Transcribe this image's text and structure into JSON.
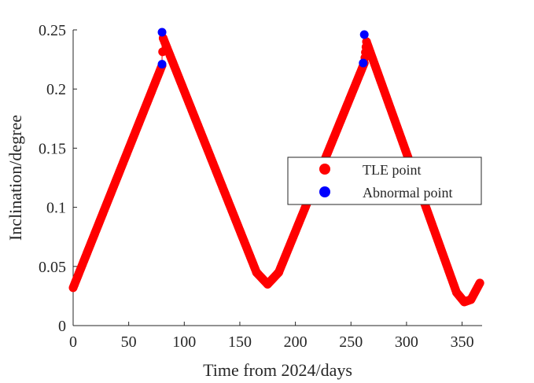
{
  "chart_data": {
    "type": "scatter",
    "xlabel": "Time from 2024/days",
    "ylabel": "Inclination/degree",
    "xlim": [
      0,
      368
    ],
    "ylim": [
      0,
      0.25
    ],
    "xticks": [
      0,
      50,
      100,
      150,
      200,
      250,
      300,
      350
    ],
    "yticks": [
      0,
      0.05,
      0.1,
      0.15,
      0.2,
      0.25
    ],
    "ytick_labels": [
      "0",
      "0.05",
      "0.1",
      "0.15",
      "0.2",
      "0.25"
    ],
    "grid": false,
    "legend_position": "right-center",
    "series": [
      {
        "name": "TLE point",
        "color": "#ff0000",
        "segments": [
          {
            "x_start": 0,
            "y_start": 0.032,
            "x_end": 80,
            "y_end": 0.22,
            "step": 0.5
          },
          {
            "x_start": 80,
            "y_start": 0.22,
            "x_end": 81,
            "y_end": 0.243,
            "step": 0.5
          },
          {
            "x_start": 81,
            "y_start": 0.243,
            "x_end": 165,
            "y_end": 0.045,
            "step": 0.5
          },
          {
            "x_start": 165,
            "y_start": 0.045,
            "x_end": 175,
            "y_end": 0.035,
            "step": 0.5
          },
          {
            "x_start": 175,
            "y_start": 0.035,
            "x_end": 185,
            "y_end": 0.045,
            "step": 0.5
          },
          {
            "x_start": 185,
            "y_start": 0.045,
            "x_end": 262,
            "y_end": 0.222,
            "step": 0.5
          },
          {
            "x_start": 262,
            "y_start": 0.222,
            "x_end": 264,
            "y_end": 0.24,
            "step": 0.5
          },
          {
            "x_start": 264,
            "y_start": 0.24,
            "x_end": 345,
            "y_end": 0.028,
            "step": 0.5
          },
          {
            "x_start": 345,
            "y_start": 0.028,
            "x_end": 352,
            "y_end": 0.02,
            "step": 0.5
          },
          {
            "x_start": 352,
            "y_start": 0.02,
            "x_end": 358,
            "y_end": 0.022,
            "step": 0.5
          },
          {
            "x_start": 358,
            "y_start": 0.022,
            "x_end": 366,
            "y_end": 0.036,
            "step": 0.5
          }
        ]
      },
      {
        "name": "Abnormal point",
        "color": "#0000ff",
        "points": [
          {
            "x": 80,
            "y": 0.248
          },
          {
            "x": 80,
            "y": 0.221
          },
          {
            "x": 262,
            "y": 0.246
          },
          {
            "x": 261,
            "y": 0.222
          }
        ]
      }
    ],
    "connector_lines": [
      {
        "x": 80,
        "y1": 0.221,
        "y2": 0.248
      },
      {
        "x": 262,
        "y1": 0.222,
        "y2": 0.246
      }
    ]
  }
}
